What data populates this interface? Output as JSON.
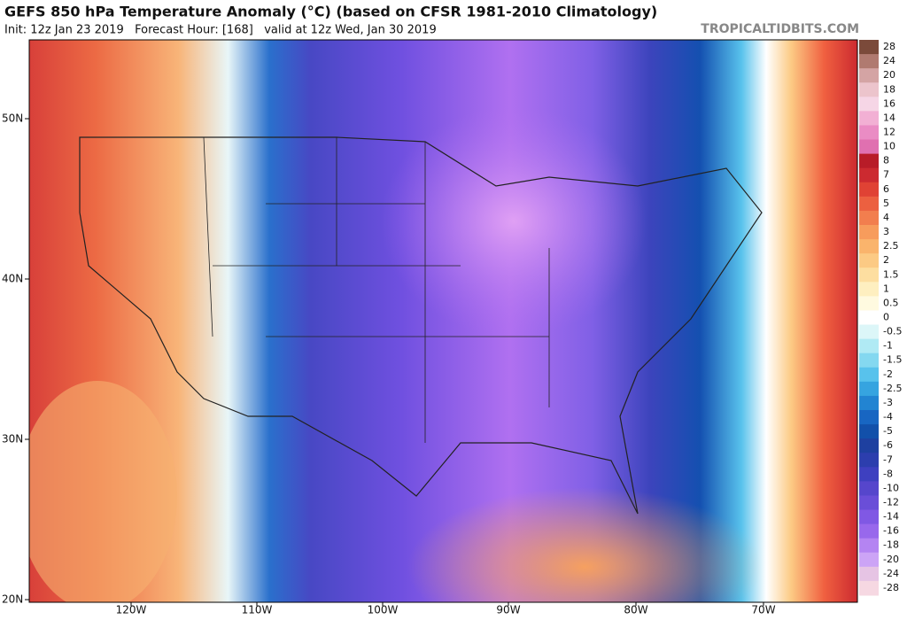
{
  "header": {
    "title": "GEFS 850 hPa Temperature Anomaly (°C) (based on CFSR 1981-2010 Climatology)",
    "init": "Init: 12z Jan 23 2019   Forecast Hour: [168]   valid at 12z Wed, Jan 30 2019",
    "site": "TROPICALTIDBITS.COM"
  },
  "map": {
    "lat_labels": [
      "50N",
      "40N",
      "30N",
      "20N"
    ],
    "lon_labels": [
      "120W",
      "110W",
      "100W",
      "90W",
      "80W",
      "70W"
    ]
  },
  "colorbar": {
    "labels": [
      "28",
      "24",
      "20",
      "18",
      "16",
      "14",
      "12",
      "10",
      "8",
      "7",
      "6",
      "5",
      "4",
      "3",
      "2.5",
      "2",
      "1.5",
      "1",
      "0.5",
      "0",
      "-0.5",
      "-1",
      "-1.5",
      "-2",
      "-2.5",
      "-3",
      "-4",
      "-5",
      "-6",
      "-7",
      "-8",
      "-10",
      "-12",
      "-14",
      "-16",
      "-18",
      "-20",
      "-24",
      "-28"
    ],
    "colors": [
      "#7b4a3a",
      "#b07a70",
      "#d4a4a4",
      "#ecc4cc",
      "#f6d6e6",
      "#f2b0d4",
      "#ea8cc4",
      "#e070b0",
      "#b81c28",
      "#cc2a30",
      "#e04234",
      "#ec6040",
      "#f27e4e",
      "#f79c5c",
      "#fab46c",
      "#fcca84",
      "#fddea0",
      "#feefc0",
      "#fffae0",
      "#ffffff",
      "#dcf6f8",
      "#b0eaf4",
      "#84d8f0",
      "#58c2ec",
      "#36a4e0",
      "#2284d2",
      "#1866c2",
      "#1250aa",
      "#1e40a0",
      "#2c3eae",
      "#3e40c0",
      "#5646cc",
      "#6a4ed8",
      "#8058e4",
      "#9868ec",
      "#b484f2",
      "#cca4f6",
      "#e6c4e4",
      "#f6d8e2"
    ]
  }
}
